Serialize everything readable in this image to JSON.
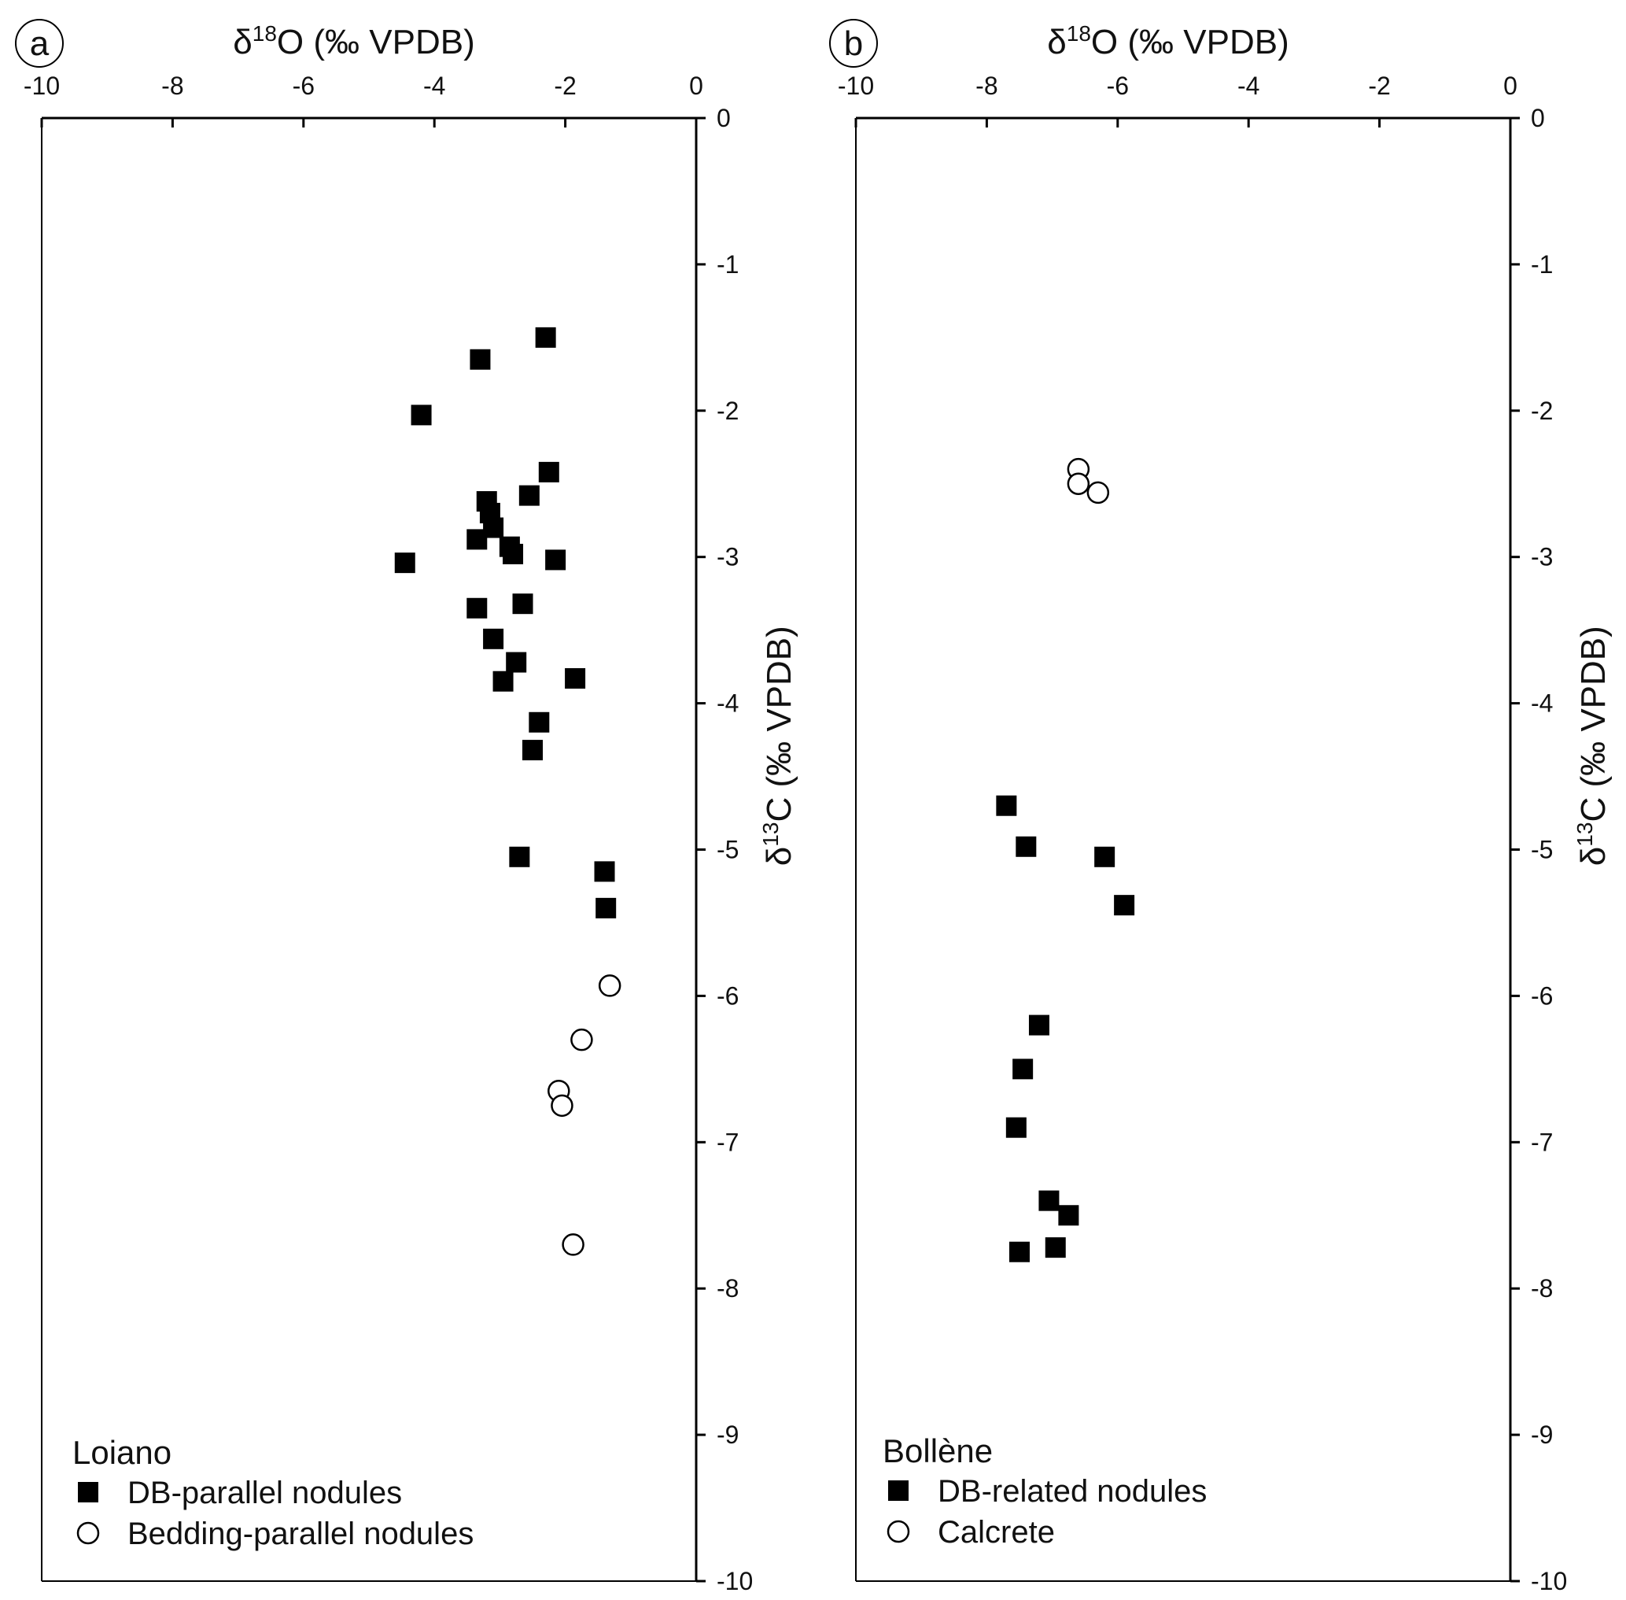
{
  "chart_data": [
    {
      "type": "scatter",
      "panel_label": "a",
      "x_title": {
        "main": "δ",
        "sup": "18",
        "rest": "O (‰ VPDB)"
      },
      "y_title": {
        "main": "δ",
        "sup": "13",
        "rest": "C (‰ VPDB)"
      },
      "xlim": [
        -10,
        0
      ],
      "ylim": [
        -10,
        0
      ],
      "x_ticks": [
        "-10",
        "-8",
        "-6",
        "-4",
        "-2",
        "0"
      ],
      "y_ticks": [
        "0",
        "-1",
        "-2",
        "-3",
        "-4",
        "-5",
        "-6",
        "-7",
        "-8",
        "-9",
        "-10"
      ],
      "x_axis_position": "top",
      "y_axis_position": "right",
      "grid": false,
      "legend_position": "bottom-left",
      "legend_title": "Loiano",
      "series": [
        {
          "name": "DB-parallel nodules",
          "marker": "filled-square",
          "color": "#000000",
          "points": [
            [
              -2.3,
              -1.5
            ],
            [
              -3.3,
              -1.65
            ],
            [
              -4.2,
              -2.03
            ],
            [
              -2.25,
              -2.42
            ],
            [
              -2.55,
              -2.58
            ],
            [
              -3.2,
              -2.62
            ],
            [
              -3.15,
              -2.7
            ],
            [
              -3.1,
              -2.8
            ],
            [
              -3.35,
              -2.88
            ],
            [
              -2.85,
              -2.93
            ],
            [
              -2.8,
              -2.98
            ],
            [
              -2.15,
              -3.02
            ],
            [
              -4.45,
              -3.04
            ],
            [
              -3.35,
              -3.35
            ],
            [
              -2.65,
              -3.32
            ],
            [
              -3.1,
              -3.56
            ],
            [
              -2.75,
              -3.72
            ],
            [
              -2.95,
              -3.85
            ],
            [
              -1.85,
              -3.83
            ],
            [
              -2.4,
              -4.13
            ],
            [
              -2.5,
              -4.32
            ],
            [
              -2.7,
              -5.05
            ],
            [
              -1.4,
              -5.15
            ],
            [
              -1.38,
              -5.4
            ]
          ]
        },
        {
          "name": "Bedding-parallel nodules",
          "marker": "open-circle",
          "color": "#000000",
          "points": [
            [
              -1.32,
              -5.93
            ],
            [
              -1.75,
              -6.3
            ],
            [
              -2.1,
              -6.65
            ],
            [
              -2.05,
              -6.75
            ],
            [
              -1.88,
              -7.7
            ]
          ]
        }
      ]
    },
    {
      "type": "scatter",
      "panel_label": "b",
      "x_title": {
        "main": "δ",
        "sup": "18",
        "rest": "O (‰ VPDB)"
      },
      "y_title": {
        "main": "δ",
        "sup": "13",
        "rest": "C (‰ VPDB)"
      },
      "xlim": [
        -10,
        0
      ],
      "ylim": [
        -10,
        0
      ],
      "x_ticks": [
        "-10",
        "-8",
        "-6",
        "-4",
        "-2",
        "0"
      ],
      "y_ticks": [
        "0",
        "-1",
        "-2",
        "-3",
        "-4",
        "-5",
        "-6",
        "-7",
        "-8",
        "-9",
        "-10"
      ],
      "x_axis_position": "top",
      "y_axis_position": "right",
      "grid": false,
      "legend_position": "bottom-left",
      "legend_title": "Bollène",
      "series": [
        {
          "name": "DB-related nodules",
          "marker": "filled-square",
          "color": "#000000",
          "points": [
            [
              -7.7,
              -4.7
            ],
            [
              -7.4,
              -4.98
            ],
            [
              -6.2,
              -5.05
            ],
            [
              -5.9,
              -5.38
            ],
            [
              -7.2,
              -6.2
            ],
            [
              -7.45,
              -6.5
            ],
            [
              -7.55,
              -6.9
            ],
            [
              -7.05,
              -7.4
            ],
            [
              -6.75,
              -7.5
            ],
            [
              -6.95,
              -7.72
            ],
            [
              -7.5,
              -7.75
            ]
          ]
        },
        {
          "name": "Calcrete",
          "marker": "open-circle",
          "color": "#000000",
          "points": [
            [
              -6.6,
              -2.4
            ],
            [
              -6.6,
              -2.5
            ],
            [
              -6.3,
              -2.56
            ]
          ]
        }
      ]
    }
  ]
}
